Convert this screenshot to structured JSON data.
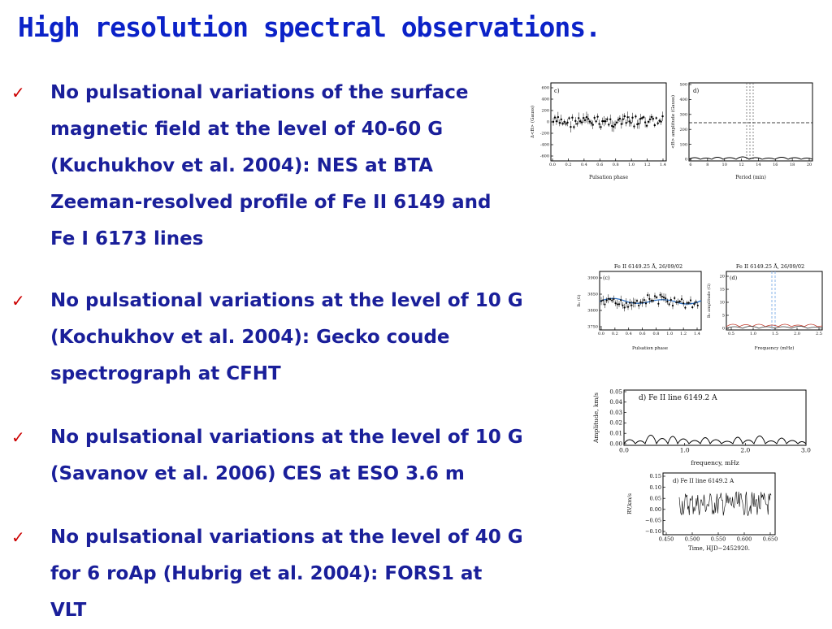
{
  "slide": {
    "title": "High resolution spectral observations.",
    "bullets": [
      {
        "lines": [
          "No pulsational variations of the surface",
          "magnetic field at the level of 40-60 G",
          "(Kuchukhov et al. 2004): NES at BTA",
          "Zeeman-resolved profile of Fe II 6149 and",
          "Fe I 6173 lines"
        ]
      },
      {
        "lines": [
          "No pulsational variations at the level of 10 G",
          "(Kochukhov et al. 2004): Gecko coude",
          "spectrograph at CFHT"
        ]
      },
      {
        "lines": [
          "No pulsational variations at the level of 10 G",
          "(Savanov et al. 2006) CES at ESO 3.6 m"
        ]
      },
      {
        "lines": [
          "No pulsational variations at the level of 40 G",
          "for 6 roAp (Hubrig et al. 2004): FORS1 at",
          "VLT"
        ]
      }
    ],
    "check_symbol": "✓"
  },
  "figures": {
    "fig1c": {
      "panel": "c)",
      "xlabel": "Pulsation phase",
      "ylabel": "Δ<B> (Gauss)",
      "xticks": [
        "0.0",
        "0.2",
        "0.4",
        "0.6",
        "0.8",
        "1.0",
        "1.2",
        "1.4"
      ],
      "yticks": [
        "600",
        "400",
        "200",
        "0",
        "-200",
        "-400",
        "-600"
      ]
    },
    "fig1d": {
      "panel": "d)",
      "xlabel": "Period (min)",
      "ylabel": "<B> amplitude (Gauss)",
      "xticks": [
        "6",
        "8",
        "10",
        "12",
        "14",
        "16",
        "18",
        "20"
      ],
      "yticks": [
        "500",
        "400",
        "300",
        "200",
        "100",
        "0"
      ]
    },
    "fig2c": {
      "panel": "(c)",
      "header": "Fe II 6149.25 Å, 26/09/02",
      "xlabel": "Pulsation phase",
      "ylabel": "B₀ (G)",
      "xticks": [
        "0.0",
        "0.2",
        "0.4",
        "0.6",
        "0.8",
        "1.0",
        "1.2",
        "1.4"
      ],
      "yticks": [
        "3900",
        "3850",
        "3800",
        "3750"
      ]
    },
    "fig2d": {
      "panel": "(d)",
      "header": "Fe II 6149.25 Å, 26/09/02",
      "xlabel": "Frequency (mHz)",
      "ylabel": "B₀ amplitude (G)",
      "xticks": [
        "0.5",
        "1.0",
        "1.5",
        "2.0",
        "2.5"
      ],
      "yticks": [
        "20",
        "15",
        "10",
        "5",
        "0"
      ]
    },
    "fig3": {
      "panel": "d) Fe II line 6149.2 A",
      "xlabel": "frequency, mHz",
      "ylabel": "Amplitude, km/s",
      "xticks": [
        "0.0",
        "1.0",
        "2.0",
        "3.0"
      ],
      "yticks": [
        "0.05",
        "0.04",
        "0.03",
        "0.02",
        "0.01",
        "0.00"
      ]
    },
    "fig4": {
      "panel": "d) Fe II line 6149.2 A",
      "xlabel": "Time, HJD−2452920.",
      "ylabel": "RV,km/s",
      "xticks": [
        "0.450",
        "0.500",
        "0.550",
        "0.600",
        "0.650"
      ],
      "yticks": [
        "0.15",
        "0.10",
        "0.05",
        "0.00",
        "−0.05",
        "−0.10"
      ]
    }
  }
}
